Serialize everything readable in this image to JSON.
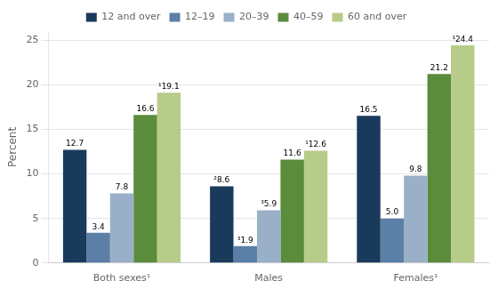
{
  "chart_data": {
    "type": "bar",
    "categories": [
      "Both sexes¹",
      "Males",
      "Females¹"
    ],
    "series": [
      {
        "name": "12 and over",
        "color": "#1a3a5c",
        "values": [
          12.7,
          8.6,
          16.5
        ],
        "value_labels": [
          "12.7",
          "²8.6",
          "16.5"
        ]
      },
      {
        "name": "12–19",
        "color": "#5b7fa6",
        "values": [
          3.4,
          1.9,
          5.0
        ],
        "value_labels": [
          "3.4",
          "³1.9",
          "5.0"
        ]
      },
      {
        "name": "20–39",
        "color": "#9ab0c8",
        "values": [
          7.8,
          5.9,
          9.8
        ],
        "value_labels": [
          "7.8",
          "³5.9",
          "9.8"
        ]
      },
      {
        "name": "40–59",
        "color": "#5a8c3c",
        "values": [
          16.6,
          11.6,
          21.2
        ],
        "value_labels": [
          "16.6",
          "11.6",
          "21.2"
        ]
      },
      {
        "name": "60 and over",
        "color": "#b8cc8a",
        "values": [
          19.1,
          12.6,
          24.4
        ],
        "value_labels": [
          "¹19.1",
          "¹12.6",
          "¹24.4"
        ]
      }
    ],
    "ylabel": "Percent",
    "ylim": [
      0,
      26
    ],
    "yticks": [
      0,
      5,
      10,
      15,
      20,
      25
    ],
    "grid": true,
    "legend": "top",
    "data_labels": true
  }
}
